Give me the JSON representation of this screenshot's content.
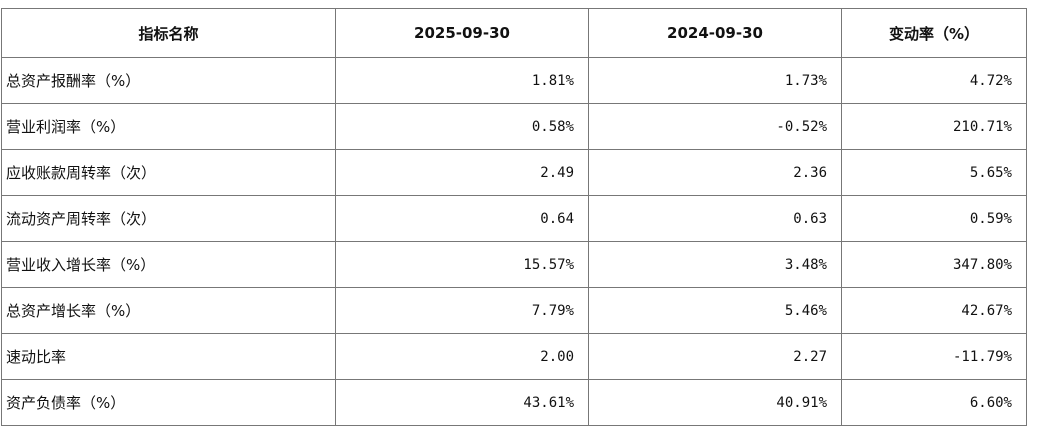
{
  "table": {
    "header": [
      "指标名称",
      "2025-09-30",
      "2024-09-30",
      "变动率（%）"
    ],
    "rows": [
      [
        "总资产报酬率（%）",
        "1.81%",
        "1.73%",
        "4.72%"
      ],
      [
        "营业利润率（%）",
        "0.58%",
        "-0.52%",
        "210.71%"
      ],
      [
        "应收账款周转率（次）",
        "2.49",
        "2.36",
        "5.65%"
      ],
      [
        "流动资产周转率（次）",
        "0.64",
        "0.63",
        "0.59%"
      ],
      [
        "营业收入增长率（%）",
        "15.57%",
        "3.48%",
        "347.80%"
      ],
      [
        "总资产增长率（%）",
        "7.79%",
        "5.46%",
        "42.67%"
      ],
      [
        "速动比率",
        "2.00",
        "2.27",
        "-11.79%"
      ],
      [
        "资产负债率（%）",
        "43.61%",
        "40.91%",
        "6.60%"
      ]
    ]
  }
}
